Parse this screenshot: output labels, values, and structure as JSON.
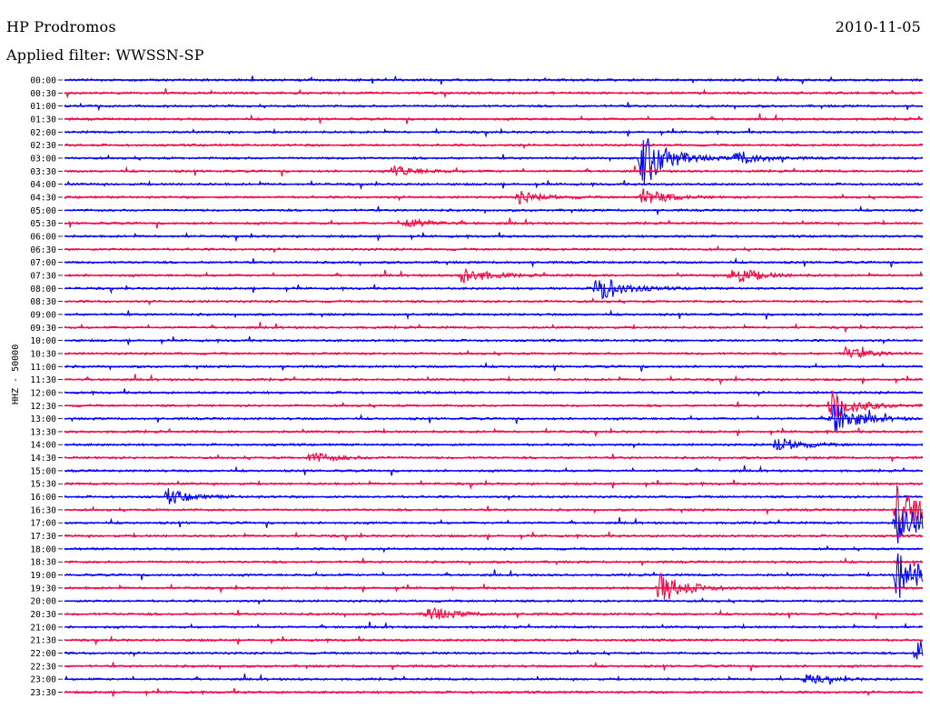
{
  "header": {
    "station": "HP Prodromos",
    "filter": "Applied filter: WWSSN-SP",
    "date": "2010-11-05"
  },
  "colors": {
    "trace_a": "#0000ff",
    "trace_b": "#ff0040",
    "background": "#ffffff",
    "text": "#000000"
  },
  "chart_data": {
    "type": "line",
    "title": "HP Prodromos",
    "ylabel": "HHZ - 50000",
    "xlabel": "",
    "grid": false,
    "legend": "none",
    "rows_per_day": 48,
    "row_minutes": 30,
    "y_tick_labels": [
      "00:00",
      "00:30",
      "01:00",
      "01:30",
      "02:00",
      "02:30",
      "03:00",
      "03:30",
      "04:00",
      "04:30",
      "05:00",
      "05:30",
      "06:00",
      "06:30",
      "07:00",
      "07:30",
      "08:00",
      "08:30",
      "09:00",
      "09:30",
      "10:00",
      "10:30",
      "11:00",
      "11:30",
      "12:00",
      "12:30",
      "13:00",
      "13:30",
      "14:00",
      "14:30",
      "15:00",
      "15:30",
      "16:00",
      "16:30",
      "17:00",
      "17:30",
      "18:00",
      "18:30",
      "19:00",
      "19:30",
      "20:00",
      "20:30",
      "21:00",
      "21:30",
      "22:00",
      "22:30",
      "23:00",
      "23:30"
    ],
    "series": [
      {
        "color": "#0000ff",
        "rows": "even"
      },
      {
        "color": "#ff0040",
        "rows": "odd"
      }
    ],
    "events": [
      {
        "row": "03:00",
        "minute": 20.2,
        "amplitude": 5.0
      },
      {
        "row": "03:00",
        "minute": 23.5,
        "amplitude": 1.2
      },
      {
        "row": "04:30",
        "minute": 20.2,
        "amplitude": 1.4
      },
      {
        "row": "07:30",
        "minute": 13.9,
        "amplitude": 1.4
      },
      {
        "row": "07:30",
        "minute": 23.3,
        "amplitude": 1.6
      },
      {
        "row": "08:00",
        "minute": 18.6,
        "amplitude": 2.4
      },
      {
        "row": "03:30",
        "minute": 11.5,
        "amplitude": 0.9
      },
      {
        "row": "04:30",
        "minute": 15.9,
        "amplitude": 0.9
      },
      {
        "row": "05:30",
        "minute": 11.9,
        "amplitude": 0.8
      },
      {
        "row": "10:30",
        "minute": 27.3,
        "amplitude": 1.0
      },
      {
        "row": "12:30",
        "minute": 26.8,
        "amplitude": 2.5
      },
      {
        "row": "13:00",
        "minute": 26.8,
        "amplitude": 3.0
      },
      {
        "row": "14:00",
        "minute": 24.9,
        "amplitude": 1.2
      },
      {
        "row": "14:30",
        "minute": 8.6,
        "amplitude": 0.9
      },
      {
        "row": "16:00",
        "minute": 3.6,
        "amplitude": 1.2
      },
      {
        "row": "16:30",
        "minute": 29.1,
        "amplitude": 4.0
      },
      {
        "row": "17:00",
        "minute": 29.1,
        "amplitude": 3.5
      },
      {
        "row": "19:00",
        "minute": 29.1,
        "amplitude": 4.5
      },
      {
        "row": "19:30",
        "minute": 20.8,
        "amplitude": 2.6
      },
      {
        "row": "20:30",
        "minute": 12.7,
        "amplitude": 1.2
      },
      {
        "row": "22:00",
        "minute": 29.8,
        "amplitude": 2.2
      },
      {
        "row": "23:00",
        "minute": 25.9,
        "amplitude": 0.7
      }
    ]
  }
}
